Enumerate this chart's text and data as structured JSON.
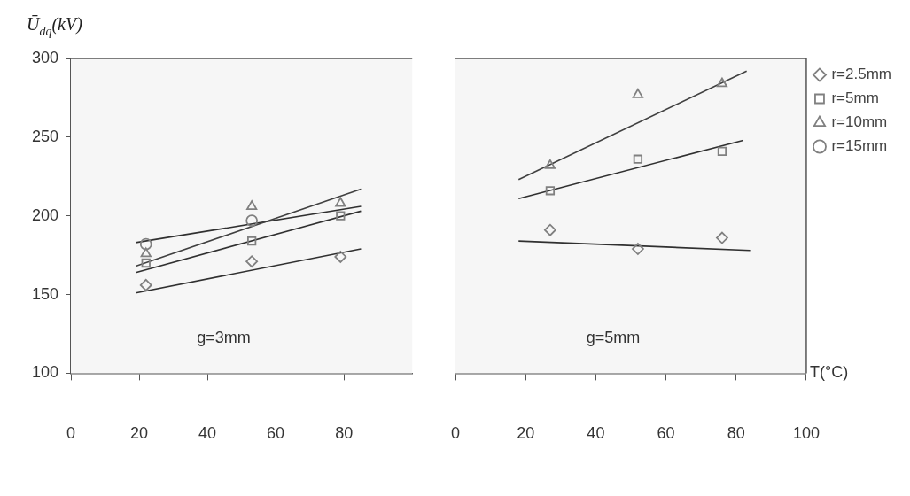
{
  "chart_data": [
    {
      "type": "scatter",
      "ylabel": "Ū$_{dq}$(kV)",
      "xlim": [
        0,
        100
      ],
      "xticks": [
        0,
        20,
        40,
        60,
        80
      ],
      "ylim": [
        100,
        300
      ],
      "yticks": [
        100,
        150,
        200,
        250,
        300
      ],
      "legend": false,
      "annotations": [
        "g=3mm"
      ],
      "x": [
        22,
        53,
        79
      ],
      "series": [
        {
          "marker": "diamond",
          "color": "#808080",
          "values": [
            156,
            171,
            174
          ]
        },
        {
          "marker": "square",
          "color": "#808080",
          "values": [
            170,
            184,
            200
          ]
        },
        {
          "marker": "triangle",
          "color": "#808080",
          "values": [
            176,
            206,
            208
          ]
        },
        {
          "marker": "circle",
          "color": "#808080",
          "values": [
            182,
            197,
            null
          ]
        },
        {
          "type": "line",
          "marker": "none",
          "color": "#303030",
          "x": [
            19,
            85
          ],
          "values": [
            151,
            179
          ]
        },
        {
          "type": "line",
          "marker": "none",
          "color": "#303030",
          "x": [
            19,
            85
          ],
          "values": [
            164,
            203
          ]
        },
        {
          "type": "line",
          "marker": "none",
          "color": "#404040",
          "x": [
            19,
            85
          ],
          "values": [
            168,
            217
          ]
        },
        {
          "type": "line",
          "marker": "none",
          "color": "#303030",
          "x": [
            19,
            85
          ],
          "values": [
            183,
            206
          ]
        }
      ]
    },
    {
      "type": "scatter",
      "xlabel": "T(°C)",
      "xlim": [
        0,
        100
      ],
      "xticks": [
        0,
        20,
        40,
        60,
        80,
        100
      ],
      "ylim": [
        100,
        300
      ],
      "tick_labels": "x",
      "legend": "top right",
      "annotations": [
        "g=5mm"
      ],
      "x": [
        27,
        52,
        76
      ],
      "series": [
        {
          "name": "r=2.5mm",
          "marker": "diamond",
          "color": "#808080",
          "values": [
            191,
            179,
            186
          ]
        },
        {
          "name": "r=5mm",
          "marker": "square",
          "color": "#808080",
          "values": [
            216,
            236,
            241
          ]
        },
        {
          "name": "r=10mm",
          "marker": "triangle",
          "color": "#808080",
          "values": [
            232,
            277,
            284
          ]
        },
        {
          "name": "r=15mm",
          "marker": "circle",
          "color": "#808080",
          "values": [
            null,
            null,
            null
          ]
        },
        {
          "type": "line",
          "marker": "none",
          "color": "#303030",
          "x": [
            18,
            84
          ],
          "values": [
            184,
            178
          ]
        },
        {
          "type": "line",
          "marker": "none",
          "color": "#303030",
          "x": [
            18,
            82
          ],
          "values": [
            211,
            248
          ]
        },
        {
          "type": "line",
          "marker": "none",
          "color": "#404040",
          "x": [
            18,
            83
          ],
          "values": [
            223,
            292
          ]
        }
      ]
    }
  ]
}
